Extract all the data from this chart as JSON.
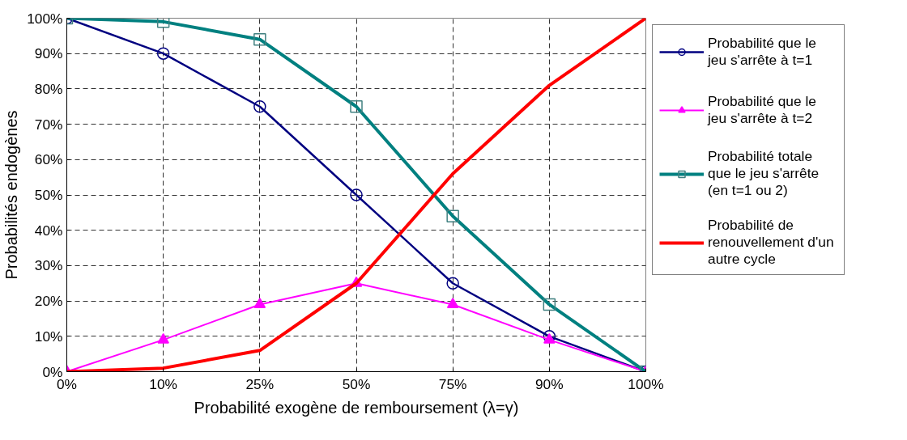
{
  "chart_data": {
    "type": "line",
    "xlabel": "Probabilité exogène de remboursement (λ=γ)",
    "ylabel": "Probabilités endogènes",
    "categories": [
      "0%",
      "10%",
      "25%",
      "50%",
      "75%",
      "90%",
      "100%"
    ],
    "ylim": [
      0,
      100
    ],
    "yticks": [
      {
        "value": 0,
        "label": "0%"
      },
      {
        "value": 10,
        "label": "10%"
      },
      {
        "value": 20,
        "label": "20%"
      },
      {
        "value": 30,
        "label": "30%"
      },
      {
        "value": 40,
        "label": "40%"
      },
      {
        "value": 50,
        "label": "50%"
      },
      {
        "value": 60,
        "label": "60%"
      },
      {
        "value": 70,
        "label": "70%"
      },
      {
        "value": 80,
        "label": "80%"
      },
      {
        "value": 90,
        "label": "90%"
      },
      {
        "value": 100,
        "label": "100%"
      }
    ],
    "grid": true,
    "legend": "right",
    "series": [
      {
        "name": "Probabilité que le jeu s'arrête à t=1",
        "color": "#000080",
        "marker": "circle",
        "values": [
          100,
          90,
          75,
          50,
          25,
          10,
          0
        ]
      },
      {
        "name": "Probabilité que le jeu s'arrête à t=2",
        "color": "#ff00ff",
        "marker": "triangle",
        "values": [
          0,
          9,
          19,
          25,
          19,
          9,
          0
        ]
      },
      {
        "name": "Probabilité totale que le jeu s'arrête (en t=1 ou 2)",
        "color": "#008080",
        "marker": "square",
        "values": [
          100,
          99,
          94,
          75,
          44,
          19,
          0
        ]
      },
      {
        "name": "Probabilité de renouvellement d'un autre cycle",
        "color": "#ff0000",
        "marker": "none",
        "values": [
          0,
          1,
          6,
          25,
          56,
          81,
          100
        ]
      }
    ]
  }
}
